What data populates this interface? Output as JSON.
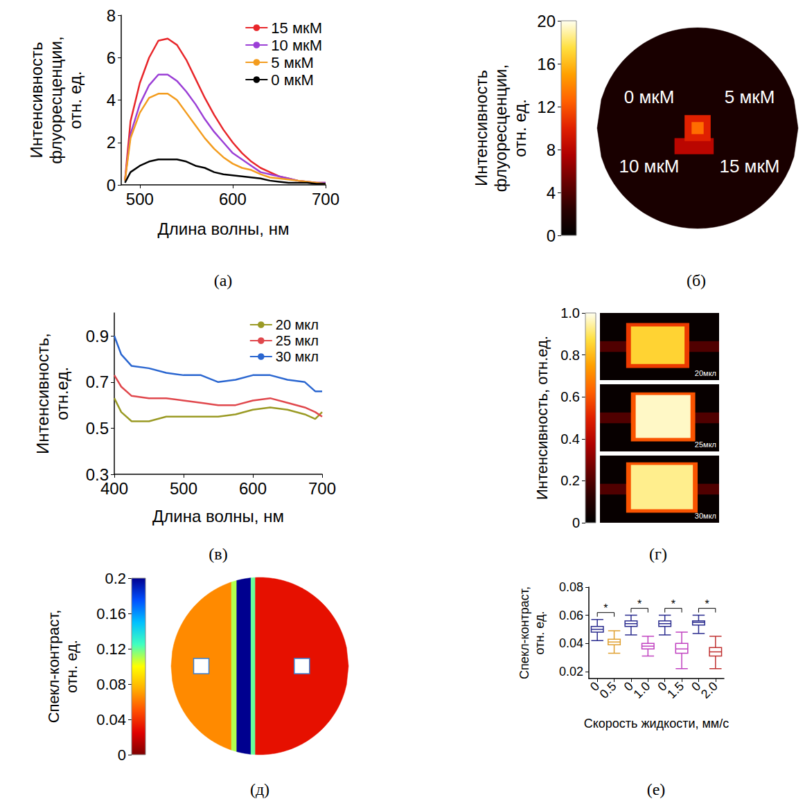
{
  "chart_data": [
    {
      "panel": "(а)",
      "type": "line",
      "x_label": "Длина волны, нм",
      "y_label": "Интенсивность флуоресценции, отн. ед.",
      "x": [
        484,
        490,
        500,
        510,
        520,
        530,
        540,
        550,
        560,
        570,
        580,
        590,
        600,
        610,
        620,
        630,
        640,
        650,
        660,
        670,
        680,
        690,
        700
      ],
      "series": [
        {
          "name": "15 мкМ",
          "color": "#e8262a",
          "values": [
            0.2,
            3.0,
            4.8,
            6.0,
            6.8,
            6.9,
            6.6,
            5.9,
            5.0,
            4.1,
            3.3,
            2.6,
            2.0,
            1.5,
            1.1,
            0.8,
            0.6,
            0.4,
            0.3,
            0.2,
            0.15,
            0.1,
            0.1
          ]
        },
        {
          "name": "10 мкМ",
          "color": "#9b3fd6",
          "values": [
            0.2,
            2.4,
            3.8,
            4.7,
            5.2,
            5.2,
            4.9,
            4.4,
            3.8,
            3.1,
            2.5,
            2.0,
            1.5,
            1.2,
            0.9,
            0.6,
            0.5,
            0.4,
            0.3,
            0.2,
            0.15,
            0.1,
            0.1
          ]
        },
        {
          "name": "5 мкМ",
          "color": "#f39c1e",
          "values": [
            0.2,
            2.2,
            3.4,
            4.1,
            4.3,
            4.3,
            4.0,
            3.4,
            2.8,
            2.2,
            1.7,
            1.3,
            1.0,
            0.8,
            0.7,
            0.5,
            0.35,
            0.3,
            0.25,
            0.2,
            0.15,
            0.1,
            0.05
          ]
        },
        {
          "name": "0 мкМ",
          "color": "#000000",
          "values": [
            0.1,
            0.6,
            0.9,
            1.1,
            1.2,
            1.2,
            1.2,
            1.1,
            0.9,
            0.8,
            0.6,
            0.5,
            0.45,
            0.4,
            0.35,
            0.3,
            0.2,
            0.15,
            0.1,
            0.1,
            0.1,
            0.05,
            0.05
          ]
        }
      ],
      "xlim": [
        480,
        700
      ],
      "xticks": [
        500,
        600,
        700
      ],
      "ylim": [
        0,
        8
      ],
      "yticks": [
        0,
        2,
        4,
        6,
        8
      ],
      "legend": "upper right",
      "grid": false
    },
    {
      "panel": "(б)",
      "type": "image",
      "xlim": [
        -1,
        1
      ],
      "ylim": [
        -1,
        1
      ],
      "tick_labels": false,
      "colorbar": {
        "label": "Интенсивность флуоресценции, отн. ед.",
        "range": [
          0,
          20
        ],
        "ticks": [
          0,
          4,
          8,
          12,
          16,
          20
        ],
        "colors": [
          "#000000",
          "#2a0000",
          "#6a0000",
          "#b00000",
          "#e02000",
          "#ff6000",
          "#ffa000",
          "#ffe040",
          "#fffff0"
        ]
      },
      "labels": [
        "0 мкМ",
        "5 мкМ",
        "10 мкМ",
        "15 мкМ"
      ],
      "bands": [
        {
          "x": [
            -1,
            1
          ],
          "value": 1.5
        }
      ],
      "rects": [
        {
          "x": [
            -0.23,
            0.16
          ],
          "y": [
            -0.26,
            -0.1
          ],
          "value": 8
        },
        {
          "x": [
            -0.13,
            0.13
          ],
          "y": [
            -0.13,
            0.13
          ],
          "value": 10
        },
        {
          "x": [
            -0.06,
            0.06
          ],
          "y": [
            -0.06,
            0.06
          ],
          "value": 13
        }
      ]
    },
    {
      "panel": "(в)",
      "type": "line",
      "x_label": "Длина волны, нм",
      "y_label": "Интенсивность, отн.ед.",
      "x": [
        400,
        410,
        425,
        450,
        475,
        500,
        525,
        550,
        575,
        600,
        625,
        650,
        675,
        690,
        700
      ],
      "series": [
        {
          "name": "20 мкл",
          "color": "#9a9a24",
          "values": [
            0.63,
            0.57,
            0.53,
            0.53,
            0.55,
            0.55,
            0.55,
            0.55,
            0.56,
            0.58,
            0.59,
            0.58,
            0.56,
            0.54,
            0.57
          ]
        },
        {
          "name": "25 мкл",
          "color": "#e0474c",
          "values": [
            0.73,
            0.68,
            0.64,
            0.63,
            0.63,
            0.62,
            0.61,
            0.6,
            0.6,
            0.62,
            0.63,
            0.61,
            0.59,
            0.57,
            0.55
          ]
        },
        {
          "name": "30 мкл",
          "color": "#2a66d0",
          "values": [
            0.9,
            0.82,
            0.77,
            0.76,
            0.74,
            0.73,
            0.73,
            0.7,
            0.71,
            0.73,
            0.73,
            0.71,
            0.7,
            0.66,
            0.66
          ]
        }
      ],
      "xlim": [
        400,
        700
      ],
      "xticks": [
        400,
        500,
        600,
        700
      ],
      "ylim": [
        0.3,
        1.0
      ],
      "yticks": [
        0.3,
        0.5,
        0.7,
        0.9
      ],
      "legend": "upper right",
      "grid": false
    },
    {
      "panel": "(г)",
      "type": "image",
      "xlim": [
        0,
        1
      ],
      "ylim": [
        0,
        1
      ],
      "tick_labels": false,
      "colorbar": {
        "label": "Интенсивность, отн.ед.",
        "range": [
          0,
          1
        ],
        "ticks": [
          0,
          0.2,
          0.4,
          0.6,
          0.8,
          {
            "value": 1,
            "label": "1.0"
          }
        ],
        "colors": [
          "#000000",
          "#2a0000",
          "#6a0000",
          "#b00000",
          "#e02000",
          "#ff6000",
          "#ffa000",
          "#ffe040",
          "#fffff0"
        ]
      },
      "images": [
        {
          "label": "20мкл",
          "rects": [
            {
              "x": [
                0,
                1
              ],
              "y": [
                0,
                1
              ],
              "value": 0.02
            },
            {
              "x": [
                0,
                1
              ],
              "y": [
                0.42,
                0.58
              ],
              "value": 0.2
            },
            {
              "x": [
                0.22,
                0.75
              ],
              "y": [
                0.18,
                0.85
              ],
              "value": 0.55
            },
            {
              "x": [
                0.26,
                0.71
              ],
              "y": [
                0.24,
                0.8
              ],
              "value": 0.85
            }
          ]
        },
        {
          "label": "25мкл",
          "rects": [
            {
              "x": [
                0,
                1
              ],
              "y": [
                0,
                1
              ],
              "value": 0.02
            },
            {
              "x": [
                0,
                1
              ],
              "y": [
                0.42,
                0.58
              ],
              "value": 0.2
            },
            {
              "x": [
                0.26,
                0.8
              ],
              "y": [
                0.15,
                0.88
              ],
              "value": 0.6
            },
            {
              "x": [
                0.3,
                0.76
              ],
              "y": [
                0.2,
                0.84
              ],
              "value": 0.97
            }
          ]
        },
        {
          "label": "30мкл",
          "rects": [
            {
              "x": [
                0,
                1
              ],
              "y": [
                0,
                1
              ],
              "value": 0.02
            },
            {
              "x": [
                0,
                1
              ],
              "y": [
                0.42,
                0.58
              ],
              "value": 0.2
            },
            {
              "x": [
                0.22,
                0.82
              ],
              "y": [
                0.15,
                0.9
              ],
              "value": 0.6
            },
            {
              "x": [
                0.26,
                0.78
              ],
              "y": [
                0.2,
                0.86
              ],
              "value": 0.93
            }
          ]
        }
      ]
    },
    {
      "panel": "(д)",
      "type": "image",
      "xlim": [
        -1,
        1
      ],
      "ylim": [
        -1,
        1
      ],
      "tick_labels": false,
      "colorbar": {
        "label": "Спекл-контраст, отн. ед.",
        "range": [
          0,
          0.2
        ],
        "ticks": [
          0,
          0.04,
          0.08,
          0.12,
          0.16,
          0.2
        ],
        "colors": [
          "#7f0000",
          "#e00000",
          "#ff5000",
          "#ffb000",
          "#ffff00",
          "#40ffc0",
          "#00c0ff",
          "#0050ff",
          "#00008f"
        ]
      },
      "bands": [
        {
          "x": [
            -1,
            -0.32
          ],
          "value": 0.065
        },
        {
          "x": [
            -0.32,
            -0.26
          ],
          "value": 0.11
        },
        {
          "x": [
            -0.26,
            -0.1
          ],
          "value": 0.2
        },
        {
          "x": [
            -0.1,
            -0.05
          ],
          "value": 0.12
        },
        {
          "x": [
            -0.05,
            1
          ],
          "value": 0.03
        }
      ]
    },
    {
      "panel": "(е)",
      "type": "boxplot",
      "x_label": "Скорость жидкости, мм/с",
      "y_label": "Спекл-контраст, отн. ед.",
      "categories": [
        "0",
        "0.5",
        "0",
        "1.0",
        "0",
        "1.5",
        "0",
        "2.0"
      ],
      "values": [
        [
          0.042,
          0.048,
          0.05,
          0.052,
          0.057
        ],
        [
          0.033,
          0.039,
          0.041,
          0.043,
          0.049
        ],
        [
          0.046,
          0.052,
          0.054,
          0.056,
          0.06
        ],
        [
          0.031,
          0.036,
          0.038,
          0.04,
          0.045
        ],
        [
          0.046,
          0.052,
          0.054,
          0.056,
          0.06
        ],
        [
          0.022,
          0.033,
          0.036,
          0.04,
          0.048
        ],
        [
          0.047,
          0.053,
          0.055,
          0.056,
          0.06
        ],
        [
          0.022,
          0.031,
          0.034,
          0.037,
          0.045
        ]
      ],
      "colors": [
        "#2b2d8f",
        "#e0a030",
        "#2b2d8f",
        "#c040c0",
        "#2b2d8f",
        "#c040c0",
        "#2b2d8f",
        "#c03030"
      ],
      "ylim": [
        0.015,
        0.08
      ],
      "yticks": [
        0.02,
        0.04,
        0.06,
        0.08
      ],
      "grid": false,
      "significance": [
        {
          "pair": [
            0,
            1
          ],
          "label": "*"
        },
        {
          "pair": [
            2,
            3
          ],
          "label": "*"
        },
        {
          "pair": [
            4,
            5
          ],
          "label": "*"
        },
        {
          "pair": [
            6,
            7
          ],
          "label": "*"
        }
      ]
    }
  ]
}
